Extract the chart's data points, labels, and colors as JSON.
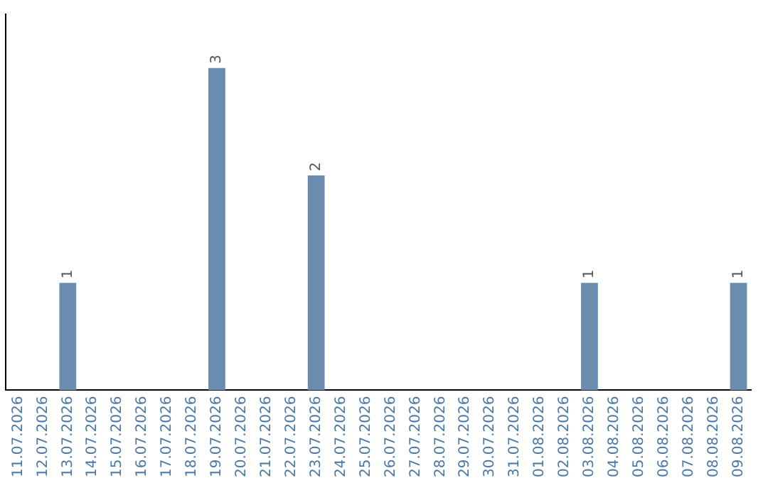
{
  "chart_data": {
    "type": "bar",
    "categories": [
      "11.07.2026",
      "12.07.2026",
      "13.07.2026",
      "14.07.2026",
      "15.07.2026",
      "16.07.2026",
      "17.07.2026",
      "18.07.2026",
      "19.07.2026",
      "20.07.2026",
      "21.07.2026",
      "22.07.2026",
      "23.07.2026",
      "24.07.2026",
      "25.07.2026",
      "26.07.2026",
      "27.07.2026",
      "28.07.2026",
      "29.07.2026",
      "30.07.2026",
      "31.07.2026",
      "01.08.2026",
      "02.08.2026",
      "03.08.2026",
      "04.08.2026",
      "05.08.2026",
      "06.08.2026",
      "07.08.2026",
      "08.08.2026",
      "09.08.2026"
    ],
    "values": [
      0,
      0,
      1,
      0,
      0,
      0,
      0,
      0,
      3,
      0,
      0,
      0,
      2,
      0,
      0,
      0,
      0,
      0,
      0,
      0,
      0,
      0,
      0,
      1,
      0,
      0,
      0,
      0,
      0,
      1
    ],
    "value_labels": [
      null,
      null,
      "1",
      null,
      null,
      null,
      null,
      null,
      "3",
      null,
      null,
      null,
      "2",
      null,
      null,
      null,
      null,
      null,
      null,
      null,
      null,
      null,
      null,
      "1",
      null,
      null,
      null,
      null,
      null,
      "1"
    ],
    "color": "#6a8caf",
    "grid": false,
    "tick_labels": "x",
    "legend": false
  }
}
